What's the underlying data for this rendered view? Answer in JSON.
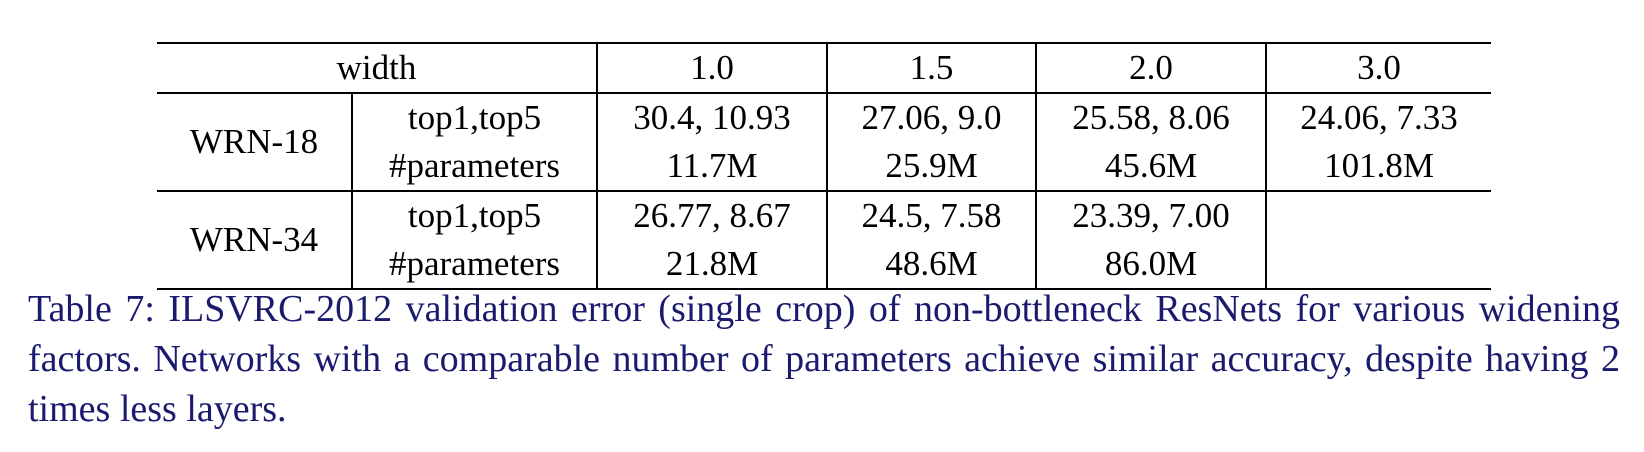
{
  "table": {
    "header": {
      "label": "width",
      "widths": [
        "1.0",
        "1.5",
        "2.0",
        "3.0"
      ]
    },
    "groups": [
      {
        "name": "WRN-18",
        "metrics": [
          "top1,top5",
          "#parameters"
        ],
        "cells": [
          {
            "errors": "30.4, 10.93",
            "params": "11.7M"
          },
          {
            "errors": "27.06, 9.0",
            "params": "25.9M"
          },
          {
            "errors": "25.58, 8.06",
            "params": "45.6M"
          },
          {
            "errors": "24.06, 7.33",
            "params": "101.8M"
          }
        ]
      },
      {
        "name": "WRN-34",
        "metrics": [
          "top1,top5",
          "#parameters"
        ],
        "cells": [
          {
            "errors": "26.77, 8.67",
            "params": "21.8M"
          },
          {
            "errors": "24.5, 7.58",
            "params": "48.6M"
          },
          {
            "errors": "23.39, 7.00",
            "params": "86.0M"
          },
          {
            "errors": "",
            "params": ""
          }
        ]
      }
    ]
  },
  "caption": {
    "text": "Table 7: ILSVRC-2012 validation error (single crop) of non-bottleneck ResNets for various widening factors. Networks with a comparable number of parameters achieve similar accuracy, despite having 2 times less layers."
  },
  "colors": {
    "caption_text": "#1a1a6e",
    "rule": "#000000"
  }
}
